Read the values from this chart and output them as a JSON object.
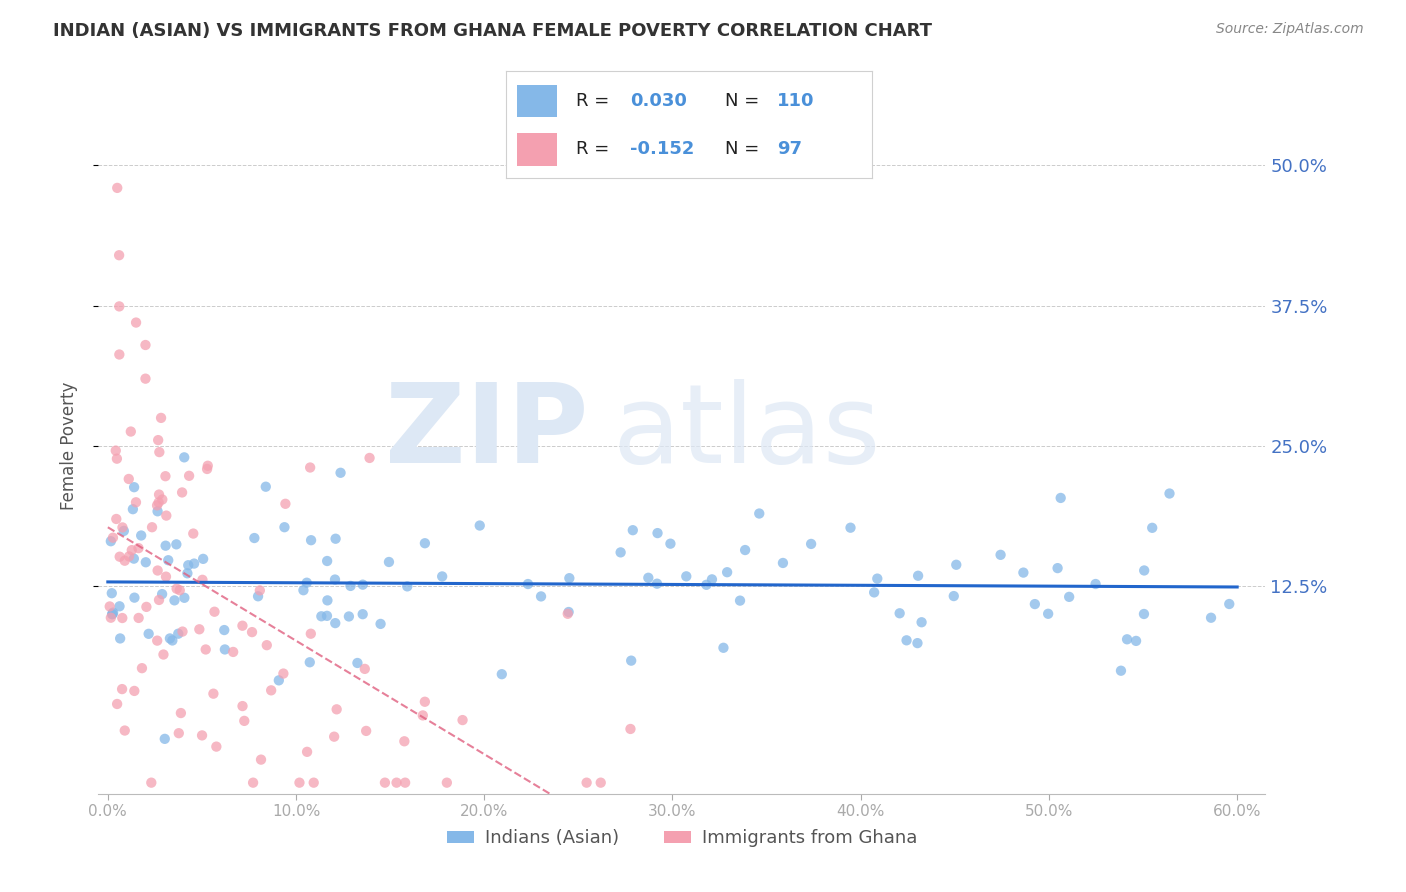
{
  "title": "INDIAN (ASIAN) VS IMMIGRANTS FROM GHANA FEMALE POVERTY CORRELATION CHART",
  "source": "Source: ZipAtlas.com",
  "ylabel": "Female Poverty",
  "series1_name": "Indians (Asian)",
  "series1_color": "#85b8e8",
  "series1_R": 0.03,
  "series1_N": 110,
  "series2_name": "Immigrants from Ghana",
  "series2_color": "#f4a0b0",
  "series2_R": -0.152,
  "series2_N": 97,
  "xlim": [
    -0.005,
    0.615
  ],
  "ylim": [
    -0.06,
    0.56
  ],
  "yticks": [
    0.125,
    0.25,
    0.375,
    0.5
  ],
  "ytick_labels": [
    "12.5%",
    "25.0%",
    "37.5%",
    "50.0%"
  ],
  "xticks": [
    0.0,
    0.1,
    0.2,
    0.3,
    0.4,
    0.5,
    0.6
  ],
  "xtick_labels": [
    "0.0%",
    "10.0%",
    "20.0%",
    "30.0%",
    "40.0%",
    "50.0%",
    "60.0%"
  ],
  "trend_color1": "#2266cc",
  "trend_color2": "#e06080",
  "legend_R_color": "#4a90d9",
  "title_color": "#333333",
  "axis_label_color": "#555555",
  "grid_color": "#cccccc",
  "background_color": "#ffffff"
}
